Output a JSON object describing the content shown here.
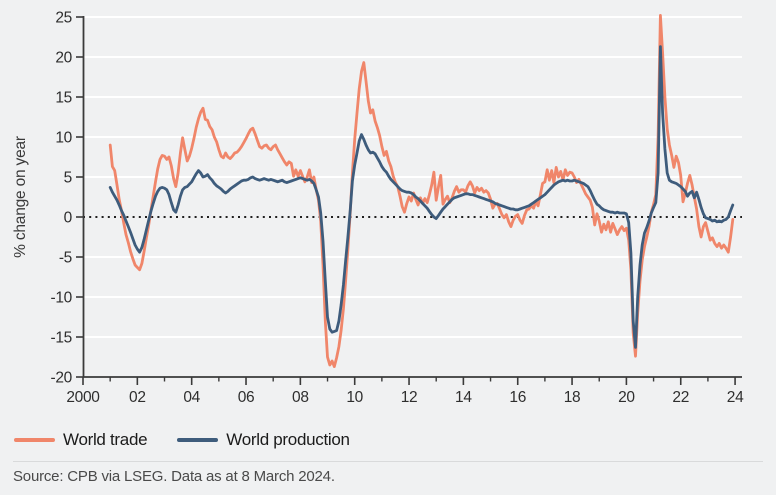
{
  "colors": {
    "background": "#F0F1F2",
    "gridline": "#FFFFFF",
    "axis": "#3A3A3A",
    "zero_line": "#1F1F1F",
    "tick_label": "#2E2E2E",
    "legend_text": "#1B1B1B",
    "source_text": "#4A4A4A",
    "world_trade": "#F0866A",
    "world_production": "#3E5C7C"
  },
  "source": {
    "text": "Source: CPB via LSEG. Data as at 8 March 2024."
  },
  "chart_data": {
    "type": "line",
    "frequency": "monthly",
    "x_start": 2001.0,
    "xlim": [
      2000,
      2024.3
    ],
    "ylim": [
      -20,
      25
    ],
    "ylabel": "% change on year",
    "grid": "horizontal-white",
    "zero_line": "dotted-black",
    "legend_position": "bottom-left",
    "y_ticks": [
      -20,
      -15,
      -10,
      -5,
      0,
      5,
      10,
      15,
      20,
      25
    ],
    "x_major_years": [
      2000,
      2002,
      2004,
      2006,
      2008,
      2010,
      2012,
      2014,
      2016,
      2018,
      2020,
      2022,
      2024
    ],
    "x_major_labels": [
      "2000",
      "02",
      "04",
      "06",
      "08",
      "10",
      "12",
      "14",
      "16",
      "18",
      "20",
      "22",
      "24"
    ],
    "x_minor_years": [
      2001,
      2003,
      2005,
      2007,
      2009,
      2011,
      2013,
      2015,
      2017,
      2019,
      2021,
      2023
    ],
    "series": [
      {
        "id": "world-trade",
        "name": "World trade",
        "color": "#F0866A",
        "values": [
          9.0,
          6.3,
          5.8,
          4.0,
          2.2,
          0.8,
          -0.8,
          -2.2,
          -3.2,
          -4.3,
          -5.2,
          -6.0,
          -6.3,
          -6.6,
          -5.8,
          -4.3,
          -2.6,
          -1.0,
          0.8,
          2.6,
          4.4,
          6.0,
          7.2,
          7.7,
          7.6,
          7.2,
          7.5,
          6.4,
          4.8,
          3.8,
          5.5,
          8.0,
          9.9,
          8.4,
          7.0,
          7.6,
          8.6,
          9.8,
          11.2,
          12.3,
          13.1,
          13.6,
          12.2,
          12.1,
          11.3,
          10.9,
          10.0,
          9.4,
          8.4,
          7.6,
          7.4,
          8.0,
          7.5,
          7.3,
          7.6,
          8.0,
          8.1,
          8.4,
          8.8,
          9.3,
          9.8,
          10.4,
          10.9,
          11.1,
          10.4,
          9.6,
          8.8,
          8.6,
          8.9,
          9.0,
          8.6,
          8.4,
          8.8,
          9.0,
          8.4,
          7.9,
          7.4,
          6.9,
          6.5,
          6.9,
          6.7,
          5.1,
          5.9,
          5.1,
          5.8,
          5.1,
          4.4,
          5.0,
          5.9,
          4.3,
          5.0,
          3.4,
          2.1,
          -0.5,
          -6.0,
          -13.0,
          -17.5,
          -18.5,
          -18.0,
          -18.7,
          -17.6,
          -16.2,
          -14.2,
          -11.5,
          -8.0,
          -4.0,
          0.5,
          5.5,
          9.7,
          13.0,
          16.0,
          18.2,
          19.3,
          17.0,
          14.5,
          13.0,
          13.4,
          12.0,
          11.2,
          10.2,
          8.8,
          7.7,
          8.2,
          7.0,
          6.3,
          5.1,
          4.3,
          3.8,
          2.6,
          1.3,
          0.6,
          1.7,
          2.5,
          2.0,
          3.0,
          2.2,
          1.5,
          2.4,
          1.7,
          2.3,
          1.8,
          2.8,
          4.0,
          5.6,
          2.1,
          3.8,
          5.2,
          1.6,
          2.2,
          2.6,
          1.8,
          2.4,
          3.2,
          3.8,
          3.1,
          3.4,
          3.4,
          3.1,
          3.9,
          4.4,
          3.9,
          3.0,
          3.7,
          3.3,
          3.6,
          3.1,
          3.3,
          3.0,
          2.2,
          1.1,
          1.6,
          1.7,
          1.0,
          0.3,
          -0.1,
          0.3,
          -0.6,
          -1.2,
          -0.4,
          0.1,
          0.3,
          -0.4,
          -0.8,
          0.2,
          0.9,
          1.0,
          1.4,
          1.1,
          1.9,
          1.4,
          2.8,
          4.2,
          4.4,
          5.9,
          4.6,
          5.8,
          4.3,
          6.2,
          5.0,
          5.7,
          4.6,
          5.9,
          5.2,
          5.6,
          5.5,
          5.0,
          4.3,
          4.7,
          4.1,
          3.5,
          2.9,
          2.5,
          2.1,
          1.2,
          -1.0,
          0.4,
          -0.5,
          -1.9,
          -0.9,
          -1.6,
          -0.6,
          -1.9,
          -0.8,
          -1.5,
          -2.2,
          -1.6,
          -1.2,
          -1.7,
          -1.4,
          -2.9,
          -6.6,
          -14.5,
          -17.4,
          -12.0,
          -8.0,
          -5.4,
          -3.7,
          -2.5,
          -1.2,
          0.6,
          1.6,
          2.8,
          10.0,
          25.2,
          20.5,
          15.0,
          11.0,
          9.0,
          7.7,
          6.2,
          7.6,
          6.8,
          5.2,
          1.9,
          3.0,
          4.2,
          5.2,
          4.0,
          2.5,
          1.0,
          -1.2,
          -2.5,
          -1.2,
          -0.7,
          -1.8,
          -2.9,
          -2.6,
          -3.3,
          -3.7,
          -3.3,
          -3.9,
          -3.5,
          -3.9,
          -4.4,
          -2.5,
          -0.3
        ]
      },
      {
        "id": "world-production",
        "name": "World production",
        "color": "#3E5C7C",
        "values": [
          3.7,
          3.1,
          2.6,
          2.1,
          1.5,
          0.8,
          0.2,
          -0.5,
          -1.2,
          -1.9,
          -2.7,
          -3.5,
          -4.0,
          -4.4,
          -3.8,
          -2.8,
          -1.6,
          -0.4,
          0.7,
          1.7,
          2.6,
          3.2,
          3.6,
          3.7,
          3.6,
          3.4,
          2.8,
          1.8,
          0.9,
          0.6,
          1.5,
          2.6,
          3.4,
          3.7,
          3.8,
          4.1,
          4.4,
          4.9,
          5.4,
          5.8,
          5.5,
          5.0,
          5.1,
          5.3,
          4.9,
          4.6,
          4.2,
          3.9,
          3.7,
          3.5,
          3.2,
          3.0,
          3.2,
          3.5,
          3.7,
          3.9,
          4.1,
          4.3,
          4.5,
          4.6,
          4.6,
          4.7,
          4.9,
          5.0,
          4.8,
          4.7,
          4.6,
          4.7,
          4.8,
          4.7,
          4.6,
          4.7,
          4.6,
          4.5,
          4.4,
          4.5,
          4.6,
          4.4,
          4.3,
          4.4,
          4.5,
          4.6,
          4.7,
          4.8,
          4.9,
          4.8,
          4.7,
          4.6,
          4.7,
          4.5,
          4.2,
          3.4,
          2.5,
          0.5,
          -3.0,
          -8.0,
          -12.5,
          -14.0,
          -14.4,
          -14.3,
          -14.2,
          -13.0,
          -11.0,
          -8.5,
          -5.5,
          -2.5,
          0.8,
          4.5,
          6.5,
          8.0,
          9.5,
          10.3,
          9.7,
          9.0,
          8.4,
          8.0,
          8.1,
          7.9,
          7.4,
          6.9,
          6.3,
          5.9,
          5.6,
          5.1,
          4.7,
          4.4,
          4.1,
          3.8,
          3.5,
          3.3,
          3.2,
          3.1,
          3.1,
          3.0,
          2.8,
          2.5,
          2.3,
          2.0,
          1.7,
          1.4,
          1.1,
          0.7,
          0.3,
          0.0,
          -0.2,
          0.2,
          0.6,
          1.0,
          1.3,
          1.6,
          1.9,
          2.2,
          2.4,
          2.5,
          2.6,
          2.7,
          2.8,
          2.9,
          2.9,
          2.8,
          2.8,
          2.7,
          2.6,
          2.5,
          2.4,
          2.3,
          2.2,
          2.1,
          2.0,
          1.9,
          1.7,
          1.6,
          1.5,
          1.4,
          1.3,
          1.2,
          1.1,
          1.0,
          1.0,
          0.9,
          0.9,
          1.0,
          1.1,
          1.2,
          1.3,
          1.4,
          1.6,
          1.8,
          2.0,
          2.2,
          2.4,
          2.6,
          2.8,
          3.1,
          3.4,
          3.7,
          4.0,
          4.2,
          4.4,
          4.5,
          4.6,
          4.5,
          4.6,
          4.5,
          4.5,
          4.6,
          4.5,
          4.4,
          4.3,
          4.2,
          4.0,
          3.8,
          3.3,
          2.7,
          2.1,
          1.6,
          1.4,
          1.1,
          0.9,
          0.8,
          0.7,
          0.6,
          0.6,
          0.5,
          0.6,
          0.5,
          0.5,
          0.5,
          0.4,
          -0.7,
          -4.5,
          -13.0,
          -16.3,
          -10.0,
          -6.0,
          -3.5,
          -2.0,
          -1.3,
          -0.5,
          0.5,
          1.2,
          1.8,
          5.5,
          21.3,
          13.0,
          8.5,
          5.5,
          4.6,
          4.4,
          4.3,
          4.2,
          4.0,
          3.8,
          3.5,
          3.2,
          2.6,
          3.0,
          3.2,
          2.4,
          3.1,
          2.2,
          1.2,
          0.4,
          -0.1,
          -0.2,
          -0.3,
          -0.5,
          -0.4,
          -0.6,
          -0.5,
          -0.6,
          -0.4,
          -0.3,
          0.0,
          0.8,
          1.5
        ]
      }
    ]
  }
}
